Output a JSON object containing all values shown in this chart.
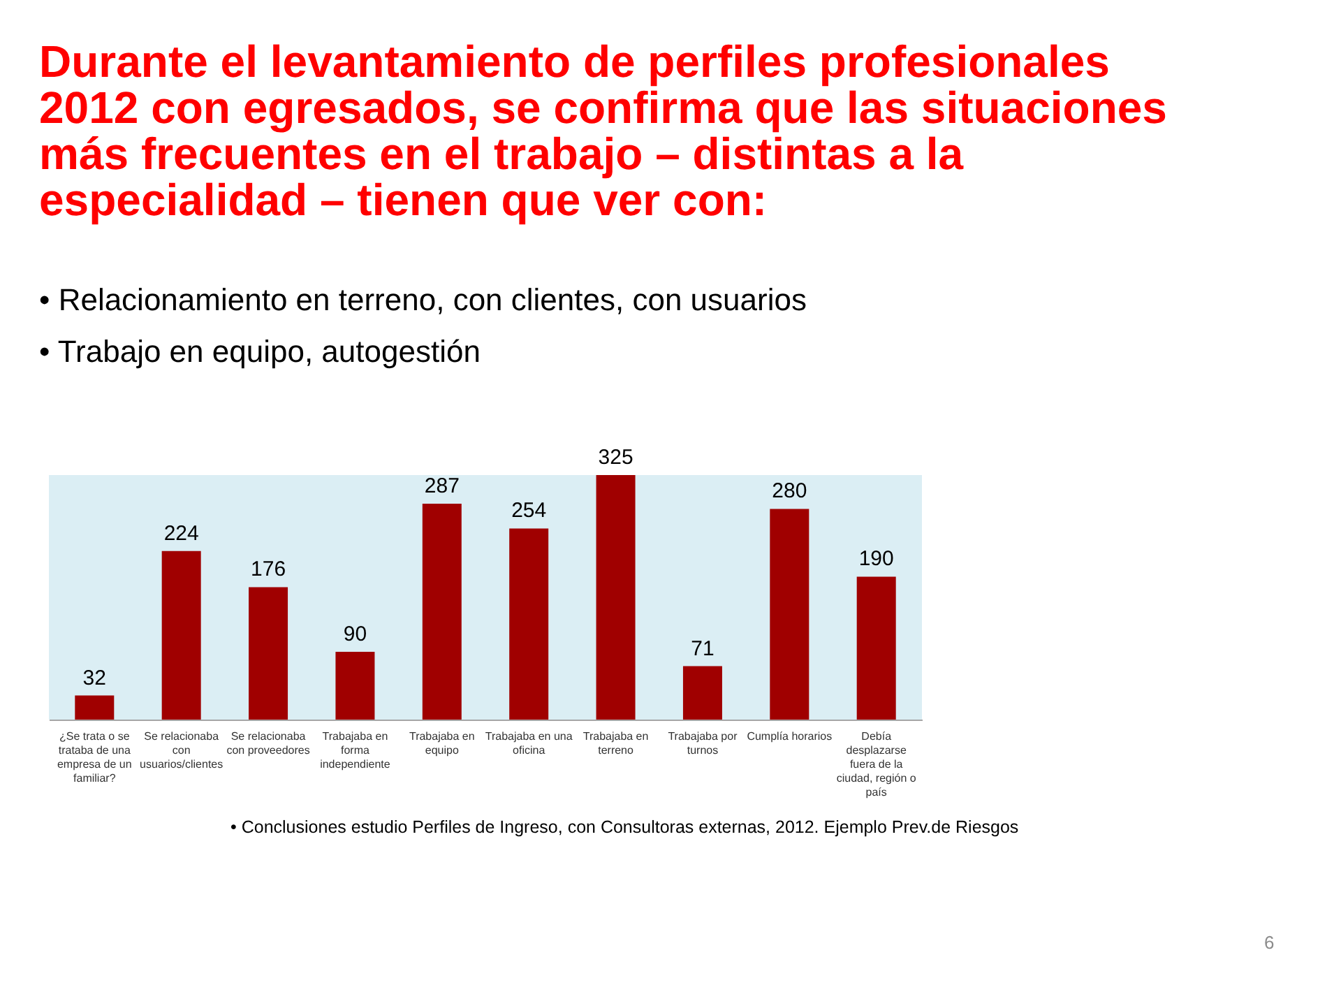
{
  "chart_data": {
    "type": "bar",
    "title": "Durante el levantamiento de perfiles profesionales 2012 con egresados, se confirma que las situaciones más frecuentes en el trabajo – distintas a la especialidad – tienen que ver con:",
    "subtitle": "• Relacionamiento en terreno, con clientes, con usuarios\n• Trabajo en equipo, autogestión",
    "categories": [
      "¿Se trata o se trataba de una empresa de un familiar?",
      "Se relacionaba con usuarios/clientes",
      "Se relacionaba con proveedores",
      "Trabajaba en forma independiente",
      "Trabajaba en equipo",
      "Trabajaba en una oficina",
      "Trabajaba en terreno",
      "Trabajaba por turnos",
      "Cumplía horarios",
      "Debía desplazarse fuera de la ciudad, región o país"
    ],
    "values": [
      32,
      224,
      176,
      90,
      287,
      254,
      325,
      71,
      280,
      190
    ],
    "color": "#a00000",
    "data_labels": true,
    "tick_labels": "x",
    "annotations": [
      "• Conclusiones estudio Perfiles de Ingreso, con Consultoras externas, 2012. Ejemplo Prev.de Riesgos",
      "6"
    ]
  }
}
